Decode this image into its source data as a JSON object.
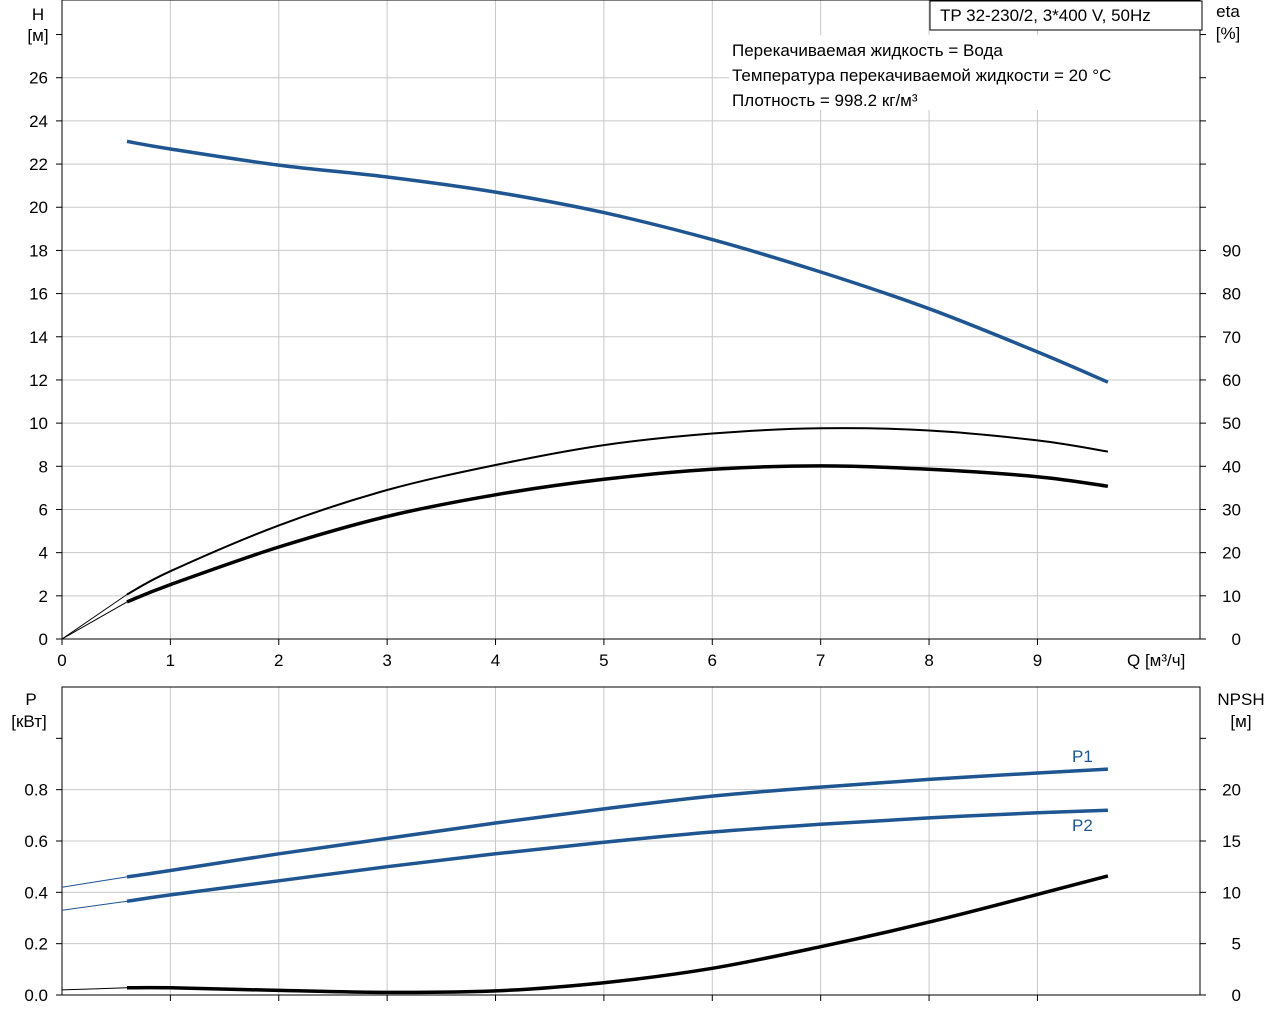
{
  "colors": {
    "blue": "#1f5591",
    "black": "#000000",
    "grid": "#c8c8c8"
  },
  "chart_data": [
    {
      "type": "line",
      "title": "TP 32-230/2, 3*400 V, 50Hz",
      "annotations": [
        "Перекачиваемая жидкость = Вода",
        "Температура перекачиваемой жидкости = 20 °C",
        "Плотность = 998.2 кг/м³"
      ],
      "xlabel": "Q [м³/ч]",
      "xlim": [
        0,
        10.5
      ],
      "xticks": [
        0,
        1,
        2,
        3,
        4,
        5,
        6,
        7,
        8,
        9
      ],
      "ylabel_left": [
        "H",
        "[м]"
      ],
      "ylim_left": [
        0,
        29.6
      ],
      "yticks_left": [
        0,
        2,
        4,
        6,
        8,
        10,
        12,
        14,
        16,
        18,
        20,
        22,
        24,
        26
      ],
      "ylabel_right": [
        "eta",
        "[%]"
      ],
      "ylim_right": [
        0,
        148
      ],
      "yticks_right": [
        0,
        10,
        20,
        30,
        40,
        50,
        60,
        70,
        80,
        90
      ],
      "grid": true,
      "series": [
        {
          "name": "H",
          "axis": "left",
          "color": "#1f5591",
          "extension_x": [
            0,
            0.6
          ],
          "x": [
            0.6,
            1,
            2,
            3,
            4,
            5,
            6,
            7,
            8,
            9,
            9.65
          ],
          "y": [
            23.05,
            22.7,
            21.95,
            21.4,
            20.7,
            19.75,
            18.5,
            17.0,
            15.3,
            13.3,
            11.9
          ]
        },
        {
          "name": "",
          "axis": "right",
          "color": "#000000",
          "extension_x": [
            0,
            0.6
          ],
          "x": [
            0,
            0.6,
            1,
            2,
            3,
            4,
            5,
            6,
            7,
            8,
            9,
            9.65
          ],
          "y": [
            0,
            10.3,
            15.7,
            26.3,
            34.5,
            40.3,
            44.9,
            47.6,
            48.8,
            48.3,
            46.0,
            43.4
          ]
        },
        {
          "name": "",
          "axis": "right",
          "color": "#000000",
          "extension_x": [
            0,
            0.6
          ],
          "x": [
            0,
            0.6,
            1,
            2,
            3,
            4,
            5,
            6,
            7,
            8,
            9,
            9.65
          ],
          "y": [
            0,
            8.6,
            12.6,
            21.3,
            28.4,
            33.4,
            37.0,
            39.3,
            40.1,
            39.3,
            37.6,
            35.4
          ]
        }
      ]
    },
    {
      "type": "line",
      "xlim": [
        0,
        10.5
      ],
      "xticks": [
        1,
        2,
        3,
        4,
        5,
        6,
        7,
        8,
        9
      ],
      "ylabel_left": [
        "P",
        "[кВт]"
      ],
      "ylim_left": [
        0,
        1.2
      ],
      "yticks_left": [
        "0.0",
        "0.2",
        "0.4",
        "0.6",
        "0.8"
      ],
      "ylabel_right": [
        "NPSH",
        "[м]"
      ],
      "ylim_right": [
        0,
        30
      ],
      "yticks_right": [
        0,
        5,
        10,
        15,
        20
      ],
      "grid": true,
      "series": [
        {
          "name": "P1",
          "axis": "left",
          "color": "#1f5591",
          "extension_x": [
            0,
            0.6
          ],
          "x": [
            0,
            0.6,
            1,
            2,
            3,
            4,
            5,
            6,
            7,
            8,
            9,
            9.65
          ],
          "y": [
            0.42,
            0.46,
            0.485,
            0.55,
            0.61,
            0.67,
            0.725,
            0.775,
            0.81,
            0.84,
            0.865,
            0.88
          ]
        },
        {
          "name": "P2",
          "axis": "left",
          "color": "#1f5591",
          "extension_x": [
            0,
            0.6
          ],
          "x": [
            0,
            0.6,
            1,
            2,
            3,
            4,
            5,
            6,
            7,
            8,
            9,
            9.65
          ],
          "y": [
            0.33,
            0.365,
            0.39,
            0.445,
            0.5,
            0.55,
            0.595,
            0.635,
            0.665,
            0.69,
            0.71,
            0.72
          ]
        },
        {
          "name": "NPSH",
          "axis": "right",
          "color": "#000000",
          "extension_x": [
            0,
            0.6
          ],
          "x": [
            0,
            0.6,
            1,
            2,
            3,
            4,
            5,
            6,
            7,
            8,
            9,
            9.65
          ],
          "y": [
            0.5,
            0.7,
            0.7,
            0.45,
            0.25,
            0.4,
            1.2,
            2.6,
            4.7,
            7.1,
            9.8,
            11.6
          ]
        }
      ]
    }
  ]
}
